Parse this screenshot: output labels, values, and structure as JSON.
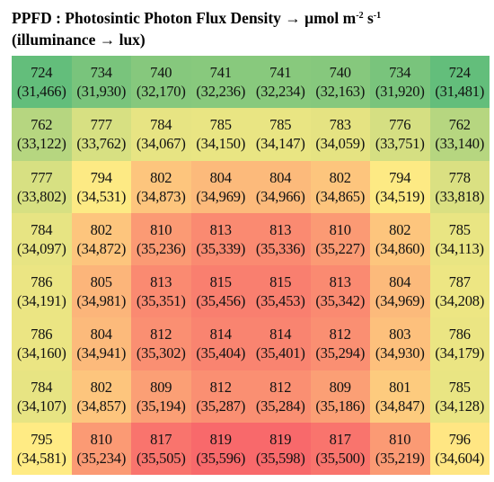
{
  "title": {
    "line1_prefix": "PPFD : Photosintic Photon Flux Density → μmol m",
    "line1_exp1": "-2",
    "line1_mid": " s",
    "line1_exp2": "-1",
    "line2": "(illuminance → lux)"
  },
  "chart_data": {
    "type": "heatmap",
    "title": "PPFD : Photosintic Photon Flux Density → μmol m-2 s-1 (illuminance → lux)",
    "rows": 8,
    "cols": 8,
    "ppfd": [
      [
        724,
        734,
        740,
        741,
        741,
        740,
        734,
        724
      ],
      [
        762,
        777,
        784,
        785,
        785,
        783,
        776,
        762
      ],
      [
        777,
        794,
        802,
        804,
        804,
        802,
        794,
        778
      ],
      [
        784,
        802,
        810,
        813,
        813,
        810,
        802,
        785
      ],
      [
        786,
        805,
        813,
        815,
        815,
        813,
        804,
        787
      ],
      [
        786,
        804,
        812,
        814,
        814,
        812,
        803,
        786
      ],
      [
        784,
        802,
        809,
        812,
        812,
        809,
        801,
        785
      ],
      [
        795,
        810,
        817,
        819,
        819,
        817,
        810,
        796
      ]
    ],
    "lux": [
      [
        "(31,466)",
        "(31,930)",
        "(32,170)",
        "(32,236)",
        "(32,234)",
        "(32,163)",
        "(31,920)",
        "(31,481)"
      ],
      [
        "(33,122)",
        "(33,762)",
        "(34,067)",
        "(34,150)",
        "(34,147)",
        "(34,059)",
        "(33,751)",
        "(33,140)"
      ],
      [
        "(33,802)",
        "(34,531)",
        "(34,873)",
        "(34,969)",
        "(34,966)",
        "(34,865)",
        "(34,519)",
        "(33,818)"
      ],
      [
        "(34,097)",
        "(34,872)",
        "(35,236)",
        "(35,339)",
        "(35,336)",
        "(35,227)",
        "(34,860)",
        "(34,113)"
      ],
      [
        "(34,191)",
        "(34,981)",
        "(35,351)",
        "(35,456)",
        "(35,453)",
        "(35,342)",
        "(34,969)",
        "(34,208)"
      ],
      [
        "(34,160)",
        "(34,941)",
        "(35,302)",
        "(35,404)",
        "(35,401)",
        "(35,294)",
        "(34,930)",
        "(34,179)"
      ],
      [
        "(34,107)",
        "(34,857)",
        "(35,194)",
        "(35,287)",
        "(35,284)",
        "(35,186)",
        "(34,847)",
        "(34,128)"
      ],
      [
        "(34,581)",
        "(35,234)",
        "(35,505)",
        "(35,596)",
        "(35,598)",
        "(35,500)",
        "(35,219)",
        "(34,604)"
      ]
    ],
    "color_scale": {
      "low": "#63be7b",
      "mid": "#ffeb84",
      "high": "#f8696b",
      "min": 724,
      "mid_value": 795,
      "max": 819
    }
  }
}
